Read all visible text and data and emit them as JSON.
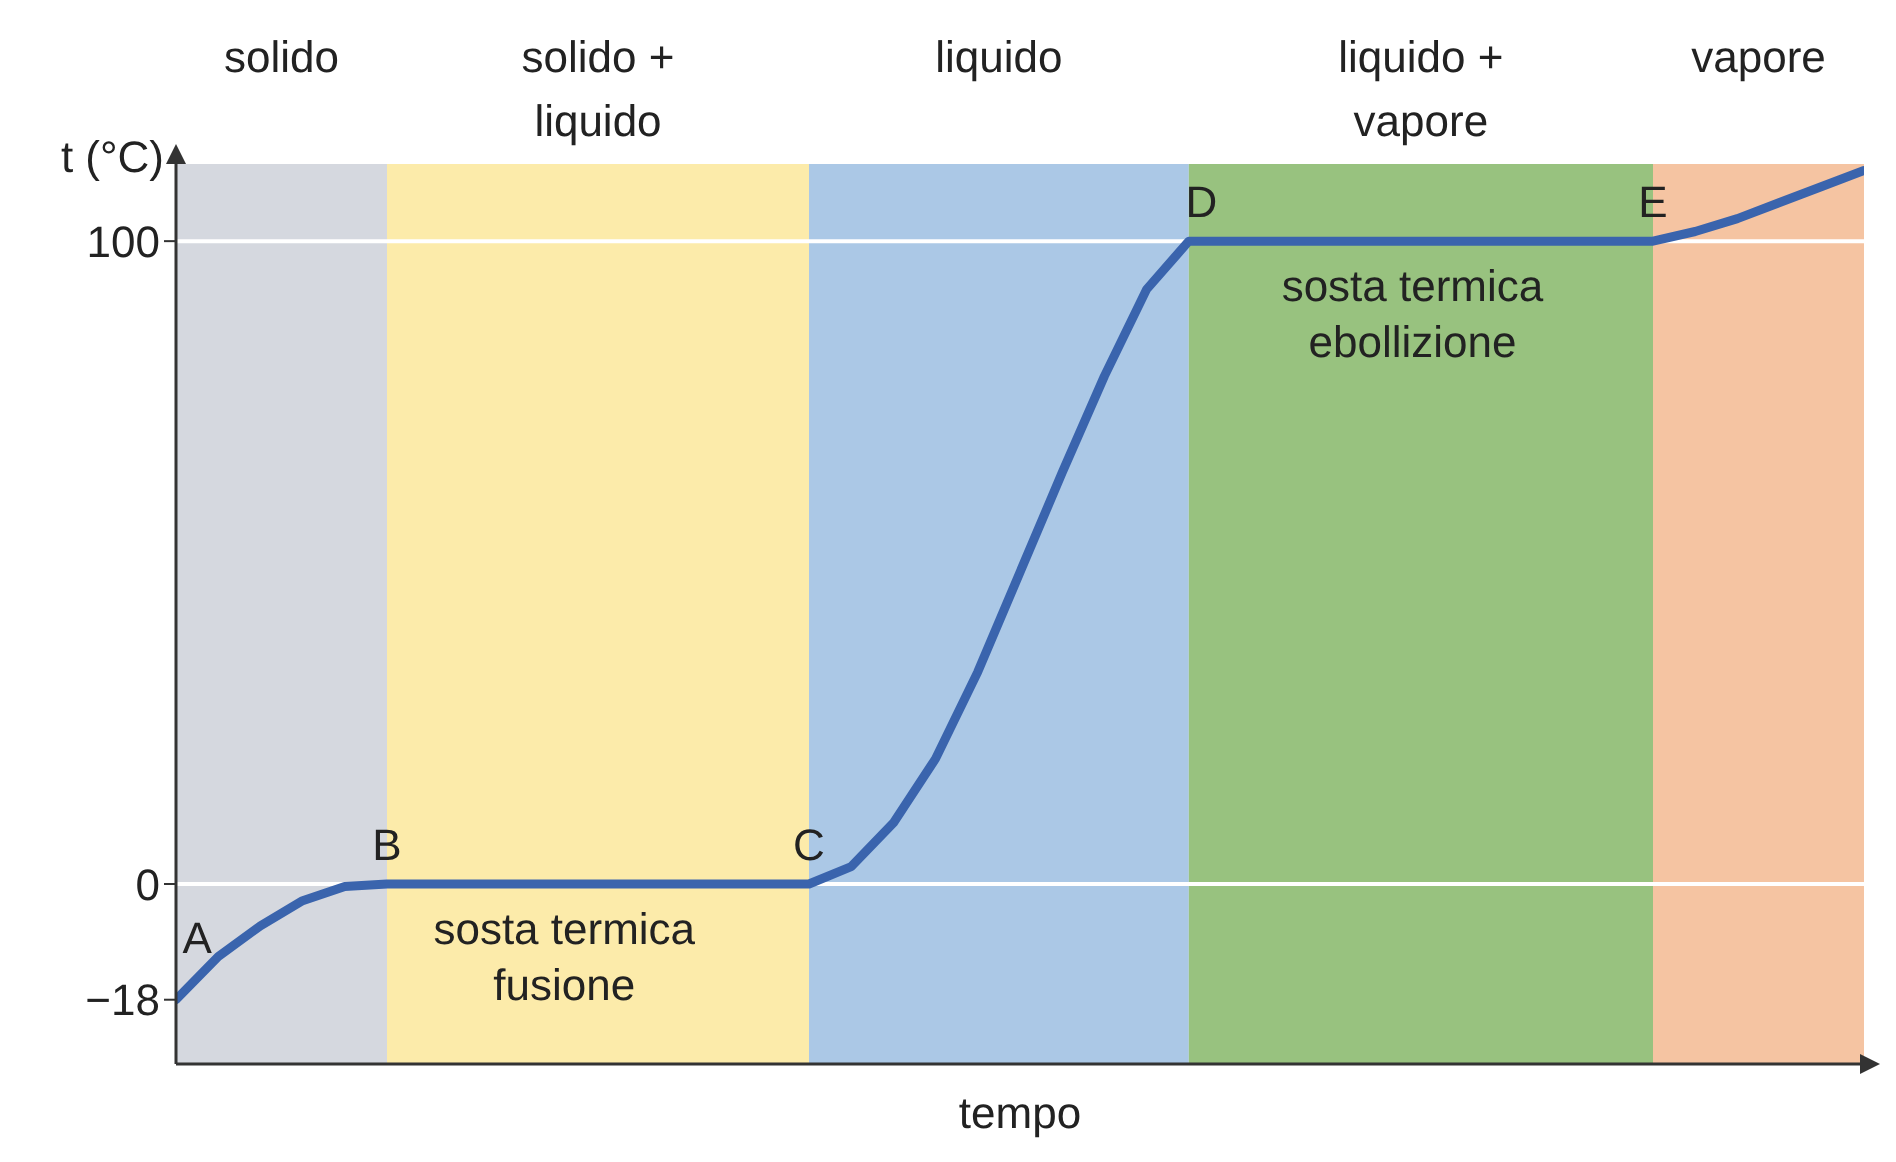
{
  "chart_data": {
    "type": "line",
    "xlabel": "tempo",
    "ylabel": "t (°C)",
    "categories": [
      null,
      null,
      null,
      null,
      null,
      null,
      null,
      null,
      null,
      null,
      null,
      null,
      null,
      null,
      null,
      null,
      null,
      null,
      null,
      null,
      null,
      null,
      null,
      null,
      null,
      null,
      null,
      null,
      null,
      null,
      null,
      null,
      null,
      null,
      null,
      null,
      null,
      null,
      null,
      null,
      null
    ],
    "ylim": [
      -28,
      112
    ],
    "yticks": [
      {
        "value": -18,
        "label": "−18"
      },
      0,
      100
    ],
    "series": [
      {
        "color": "#3a64ad",
        "values": [
          -18,
          -11.3,
          -6.5,
          -2.6,
          -0.4,
          0,
          0,
          0,
          0,
          0,
          0,
          0,
          0,
          0,
          0,
          0,
          2.7,
          9.5,
          19.5,
          33,
          48.5,
          64,
          79,
          92.5,
          100,
          100,
          100,
          100,
          100,
          100,
          100,
          100,
          100,
          100,
          100,
          100,
          101.5,
          103.5,
          106,
          108.5,
          111
        ]
      }
    ],
    "ref_lines": [
      {
        "axis": "y",
        "value": 0,
        "color": "#ffffff"
      },
      {
        "axis": "y",
        "value": 100,
        "color": "#ffffff"
      }
    ],
    "annotations": [
      "solido",
      "solido + liquido",
      "liquido",
      "liquido + vapore",
      "vapore",
      "A",
      "B",
      "C",
      "D",
      "E",
      "sosta termica fusione",
      "sosta termica ebollizione"
    ]
  }
}
